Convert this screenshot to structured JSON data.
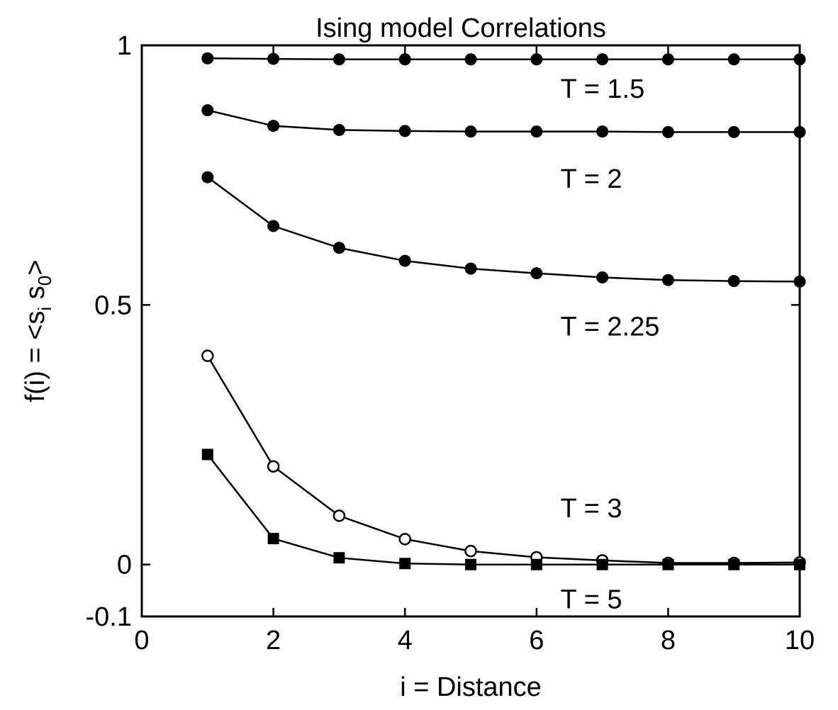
{
  "chart_data": {
    "type": "line",
    "title": "Ising model  Correlations",
    "xlabel": "i = Distance",
    "ylabel": {
      "main": "f(i) = <s",
      "sub_i": "i",
      "mid": " s",
      "sub_0": "0",
      "end": ">"
    },
    "xlim": [
      0,
      10
    ],
    "ylim": [
      -0.1,
      1
    ],
    "x_ticks": [
      "0",
      "2",
      "4",
      "6",
      "8",
      "10"
    ],
    "x_tick_values": [
      0,
      2,
      4,
      6,
      8,
      10
    ],
    "y_ticks": [
      "-0.1",
      "0",
      "0.5",
      "1"
    ],
    "y_tick_values": [
      -0.1,
      0,
      0.5,
      1
    ],
    "grid": false,
    "legend": "none (labels placed next to curves)",
    "x": [
      1,
      2,
      3,
      4,
      5,
      6,
      7,
      8,
      9,
      10
    ],
    "series": [
      {
        "name": "T = 1.5",
        "marker": "filled-circle",
        "values": [
          0.975,
          0.974,
          0.973,
          0.973,
          0.973,
          0.973,
          0.973,
          0.973,
          0.973,
          0.973
        ],
        "label_at": [
          5.2,
          0.918
        ]
      },
      {
        "name": "T = 2",
        "marker": "filled-circle",
        "values": [
          0.875,
          0.845,
          0.837,
          0.835,
          0.834,
          0.834,
          0.834,
          0.833,
          0.833,
          0.833
        ],
        "label_at": [
          5.2,
          0.745
        ]
      },
      {
        "name": "T = 2.25",
        "marker": "filled-circle",
        "values": [
          0.746,
          0.652,
          0.61,
          0.585,
          0.57,
          0.561,
          0.553,
          0.548,
          0.546,
          0.545
        ],
        "label_at": [
          5.2,
          0.46
        ]
      },
      {
        "name": "T = 3",
        "marker": "open-circle",
        "values": [
          0.402,
          0.189,
          0.094,
          0.049,
          0.026,
          0.014,
          0.008,
          0.003,
          0.003,
          0.004
        ],
        "label_at": [
          5.2,
          0.11
        ]
      },
      {
        "name": "T = 5",
        "marker": "filled-square",
        "values": [
          0.212,
          0.05,
          0.013,
          0.002,
          0.0,
          0.0,
          0.0,
          0.0,
          0.0,
          0.0
        ],
        "label_at": [
          5.2,
          -0.065
        ]
      }
    ]
  }
}
